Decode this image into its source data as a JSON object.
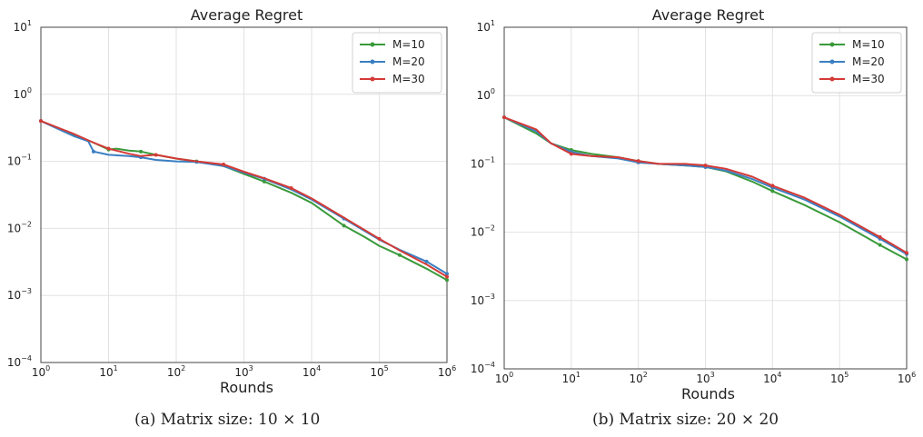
{
  "chart_data": [
    {
      "type": "line",
      "title": "Average Regret",
      "xlabel": "Rounds",
      "ylabel": "",
      "xscale": "log",
      "yscale": "log",
      "xlim": [
        1,
        1000000
      ],
      "ylim": [
        0.0001,
        10
      ],
      "grid": true,
      "legend_position": "top-right",
      "x_ticks": [
        {
          "value": 1,
          "base": "10",
          "exp": "0"
        },
        {
          "value": 10,
          "base": "10",
          "exp": "1"
        },
        {
          "value": 100,
          "base": "10",
          "exp": "2"
        },
        {
          "value": 1000,
          "base": "10",
          "exp": "3"
        },
        {
          "value": 10000,
          "base": "10",
          "exp": "4"
        },
        {
          "value": 100000,
          "base": "10",
          "exp": "5"
        },
        {
          "value": 1000000,
          "base": "10",
          "exp": "6"
        }
      ],
      "y_ticks": [
        {
          "value": 0.0001,
          "base": "10",
          "exp": "−4"
        },
        {
          "value": 0.001,
          "base": "10",
          "exp": "−3"
        },
        {
          "value": 0.01,
          "base": "10",
          "exp": "−2"
        },
        {
          "value": 0.1,
          "base": "10",
          "exp": "−1"
        },
        {
          "value": 1,
          "base": "10",
          "exp": "0"
        },
        {
          "value": 10,
          "base": "10",
          "exp": "1"
        }
      ],
      "series": [
        {
          "name": "M=10",
          "color": "#3a9a3a",
          "x": [
            1,
            3,
            6,
            10,
            13,
            20,
            30,
            50,
            100,
            200,
            500,
            1000,
            2000,
            5000,
            10000,
            30000,
            60000,
            100000,
            200000,
            500000,
            1000000
          ],
          "y": [
            0.4,
            0.25,
            0.19,
            0.15,
            0.155,
            0.145,
            0.14,
            0.125,
            0.11,
            0.1,
            0.085,
            0.065,
            0.05,
            0.034,
            0.024,
            0.011,
            0.0075,
            0.0055,
            0.004,
            0.0025,
            0.0017
          ]
        },
        {
          "name": "M=20",
          "color": "#3a7fc2",
          "x": [
            1,
            3,
            5,
            6,
            10,
            20,
            30,
            50,
            100,
            200,
            500,
            1000,
            2000,
            5000,
            10000,
            30000,
            100000,
            200000,
            500000,
            1000000
          ],
          "y": [
            0.4,
            0.24,
            0.2,
            0.14,
            0.125,
            0.12,
            0.115,
            0.105,
            0.1,
            0.098,
            0.085,
            0.068,
            0.055,
            0.038,
            0.027,
            0.014,
            0.0068,
            0.0048,
            0.0032,
            0.0021
          ]
        },
        {
          "name": "M=30",
          "color": "#d43a36",
          "x": [
            1,
            3,
            6,
            10,
            20,
            30,
            50,
            100,
            200,
            500,
            1000,
            2000,
            5000,
            10000,
            30000,
            100000,
            200000,
            500000,
            1000000
          ],
          "y": [
            0.4,
            0.26,
            0.19,
            0.155,
            0.13,
            0.12,
            0.125,
            0.11,
            0.1,
            0.09,
            0.07,
            0.056,
            0.04,
            0.028,
            0.0145,
            0.007,
            0.0047,
            0.0029,
            0.0019
          ]
        }
      ],
      "caption": "(a) Matrix size: 10 × 10"
    },
    {
      "type": "line",
      "title": "Average Regret",
      "xlabel": "Rounds",
      "ylabel": "",
      "xscale": "log",
      "yscale": "log",
      "xlim": [
        1,
        1000000
      ],
      "ylim": [
        0.0001,
        10
      ],
      "grid": true,
      "legend_position": "top-right",
      "x_ticks": [
        {
          "value": 1,
          "base": "10",
          "exp": "0"
        },
        {
          "value": 10,
          "base": "10",
          "exp": "1"
        },
        {
          "value": 100,
          "base": "10",
          "exp": "2"
        },
        {
          "value": 1000,
          "base": "10",
          "exp": "3"
        },
        {
          "value": 10000,
          "base": "10",
          "exp": "4"
        },
        {
          "value": 100000,
          "base": "10",
          "exp": "5"
        },
        {
          "value": 1000000,
          "base": "10",
          "exp": "6"
        }
      ],
      "y_ticks": [
        {
          "value": 0.0001,
          "base": "10",
          "exp": "−4"
        },
        {
          "value": 0.001,
          "base": "10",
          "exp": "−3"
        },
        {
          "value": 0.01,
          "base": "10",
          "exp": "−2"
        },
        {
          "value": 0.1,
          "base": "10",
          "exp": "−1"
        },
        {
          "value": 1,
          "base": "10",
          "exp": "0"
        },
        {
          "value": 10,
          "base": "10",
          "exp": "1"
        }
      ],
      "series": [
        {
          "name": "M=10",
          "color": "#3a9a3a",
          "x": [
            1,
            3,
            5,
            10,
            20,
            50,
            100,
            200,
            500,
            1000,
            2000,
            5000,
            10000,
            30000,
            100000,
            400000,
            1000000
          ],
          "y": [
            0.48,
            0.28,
            0.2,
            0.16,
            0.14,
            0.125,
            0.11,
            0.1,
            0.095,
            0.09,
            0.078,
            0.055,
            0.04,
            0.025,
            0.014,
            0.0065,
            0.004
          ]
        },
        {
          "name": "M=20",
          "color": "#3a7fc2",
          "x": [
            1,
            3,
            5,
            10,
            20,
            50,
            100,
            200,
            500,
            1000,
            2000,
            5000,
            10000,
            30000,
            100000,
            400000,
            1000000
          ],
          "y": [
            0.48,
            0.3,
            0.2,
            0.15,
            0.13,
            0.12,
            0.105,
            0.1,
            0.095,
            0.09,
            0.08,
            0.06,
            0.045,
            0.03,
            0.017,
            0.008,
            0.0048
          ]
        },
        {
          "name": "M=30",
          "color": "#d43a36",
          "x": [
            1,
            3,
            5,
            10,
            20,
            50,
            100,
            200,
            500,
            1000,
            2000,
            5000,
            10000,
            30000,
            100000,
            400000,
            1000000
          ],
          "y": [
            0.48,
            0.32,
            0.2,
            0.14,
            0.13,
            0.125,
            0.11,
            0.1,
            0.1,
            0.095,
            0.085,
            0.065,
            0.048,
            0.032,
            0.018,
            0.0085,
            0.005
          ]
        }
      ],
      "caption": "(b) Matrix size: 20 × 20"
    }
  ]
}
